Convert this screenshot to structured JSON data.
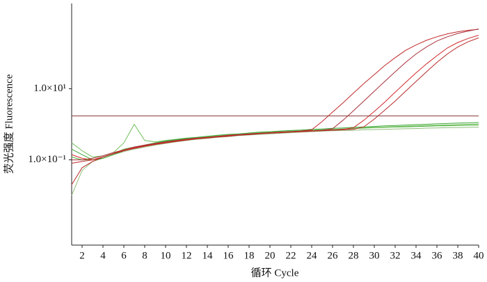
{
  "chart_data": {
    "type": "line",
    "x_label": "循环 Cycle",
    "y_label": "荧光强度 Fluorescence",
    "x": [
      1,
      2,
      3,
      4,
      5,
      6,
      7,
      8,
      9,
      10,
      11,
      12,
      13,
      14,
      15,
      16,
      17,
      18,
      19,
      20,
      21,
      22,
      23,
      24,
      25,
      26,
      27,
      28,
      29,
      30,
      31,
      32,
      33,
      34,
      35,
      36,
      37,
      38,
      39,
      40
    ],
    "xlim": [
      1,
      40
    ],
    "xticks": [
      2,
      4,
      6,
      8,
      10,
      12,
      14,
      16,
      18,
      20,
      22,
      24,
      26,
      28,
      30,
      32,
      34,
      36,
      38,
      40
    ],
    "ylim": [
      0.0004,
      2500
    ],
    "log_y": true,
    "yticks": [
      {
        "value": 10,
        "label": "1.0×10¹"
      },
      {
        "value": 0.1,
        "label": "1.0×10⁻¹"
      }
    ],
    "threshold": 1.72,
    "threshold_color": "#8b3a3a",
    "series": [
      {
        "color": "#4caf3a",
        "values": [
          0.12,
          0.1,
          0.1,
          0.12,
          0.15,
          0.2,
          0.23,
          0.26,
          0.3,
          0.33,
          0.36,
          0.39,
          0.42,
          0.44,
          0.47,
          0.5,
          0.52,
          0.55,
          0.57,
          0.6,
          0.62,
          0.64,
          0.66,
          0.68,
          0.7,
          0.72,
          0.74,
          0.76,
          0.78,
          0.8,
          0.82,
          0.84,
          0.85,
          0.86,
          0.88,
          0.9,
          0.91,
          0.92,
          0.94,
          0.95
        ]
      },
      {
        "color": "#6fbf5a",
        "values": [
          0.3,
          0.18,
          0.12,
          0.13,
          0.16,
          0.3,
          1.0,
          0.35,
          0.32,
          0.35,
          0.38,
          0.41,
          0.43,
          0.46,
          0.48,
          0.5,
          0.53,
          0.56,
          0.58,
          0.6,
          0.62,
          0.64,
          0.66,
          0.68,
          0.7,
          0.72,
          0.74,
          0.77,
          0.8,
          0.82,
          0.84,
          0.86,
          0.88,
          0.9,
          0.92,
          0.94,
          0.96,
          0.98,
          1.0,
          1.02
        ]
      },
      {
        "color": "#8fbf7a",
        "values": [
          0.01,
          0.05,
          0.09,
          0.11,
          0.14,
          0.17,
          0.2,
          0.23,
          0.26,
          0.29,
          0.32,
          0.35,
          0.38,
          0.4,
          0.43,
          0.45,
          0.48,
          0.5,
          0.52,
          0.54,
          0.56,
          0.58,
          0.6,
          0.62,
          0.64,
          0.66,
          0.67,
          0.68,
          0.7,
          0.71,
          0.72,
          0.74,
          0.75,
          0.76,
          0.78,
          0.79,
          0.8,
          0.81,
          0.82,
          0.83
        ]
      },
      {
        "color": "#3fa83a",
        "values": [
          0.2,
          0.14,
          0.1,
          0.11,
          0.14,
          0.18,
          0.22,
          0.26,
          0.3,
          0.34,
          0.37,
          0.4,
          0.43,
          0.46,
          0.49,
          0.52,
          0.54,
          0.57,
          0.6,
          0.62,
          0.65,
          0.67,
          0.69,
          0.72,
          0.74,
          0.77,
          0.79,
          0.82,
          0.84,
          0.87,
          0.9,
          0.92,
          0.95,
          0.98,
          1.0,
          1.03,
          1.05,
          1.08,
          1.1,
          1.12
        ]
      },
      {
        "color": "#c0282a",
        "values": [
          0.08,
          0.09,
          0.1,
          0.12,
          0.15,
          0.18,
          0.22,
          0.25,
          0.28,
          0.31,
          0.34,
          0.37,
          0.4,
          0.42,
          0.45,
          0.48,
          0.5,
          0.53,
          0.55,
          0.58,
          0.6,
          0.62,
          0.65,
          0.7,
          1.2,
          2.2,
          4,
          7.5,
          14,
          25,
          45,
          75,
          120,
          170,
          230,
          290,
          350,
          400,
          440,
          470
        ]
      },
      {
        "color": "#a8303a",
        "values": [
          0.1,
          0.1,
          0.11,
          0.13,
          0.16,
          0.19,
          0.23,
          0.26,
          0.29,
          0.32,
          0.35,
          0.38,
          0.41,
          0.43,
          0.46,
          0.49,
          0.51,
          0.54,
          0.56,
          0.58,
          0.6,
          0.62,
          0.64,
          0.66,
          0.68,
          0.75,
          1.3,
          2.4,
          4.5,
          8.5,
          16,
          30,
          55,
          95,
          150,
          220,
          290,
          360,
          420,
          480
        ]
      },
      {
        "color": "#d02a2a",
        "values": [
          0.14,
          0.11,
          0.1,
          0.12,
          0.15,
          0.19,
          0.22,
          0.25,
          0.28,
          0.31,
          0.34,
          0.37,
          0.4,
          0.43,
          0.45,
          0.48,
          0.5,
          0.52,
          0.55,
          0.57,
          0.59,
          0.61,
          0.63,
          0.65,
          0.67,
          0.69,
          0.72,
          0.8,
          1.3,
          2.3,
          4.2,
          8,
          15,
          28,
          50,
          85,
          140,
          200,
          260,
          320
        ]
      },
      {
        "color": "#b82a2a",
        "values": [
          0.02,
          0.06,
          0.09,
          0.12,
          0.15,
          0.18,
          0.21,
          0.24,
          0.27,
          0.3,
          0.33,
          0.36,
          0.39,
          0.41,
          0.44,
          0.46,
          0.49,
          0.51,
          0.54,
          0.56,
          0.58,
          0.6,
          0.62,
          0.64,
          0.66,
          0.68,
          0.7,
          0.72,
          0.85,
          1.4,
          2.5,
          4.5,
          8.5,
          16,
          30,
          55,
          95,
          150,
          210,
          270
        ]
      }
    ]
  }
}
